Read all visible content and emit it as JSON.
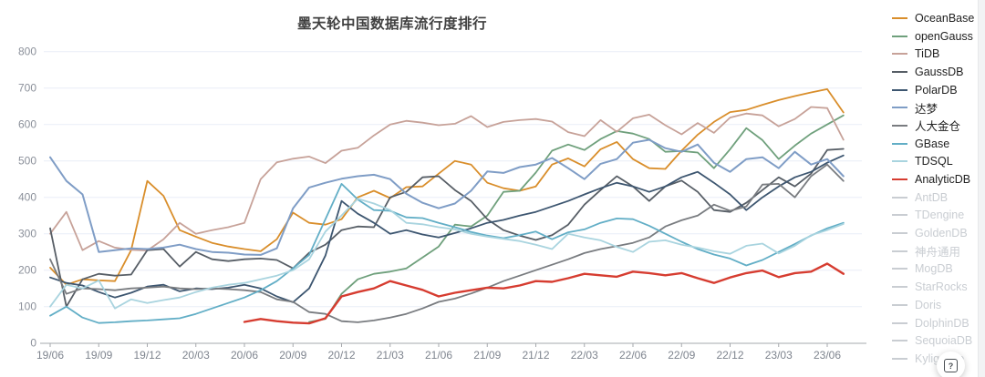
{
  "header": {
    "title": "墨天轮中国数据库流行度排行"
  },
  "help_button": {
    "glyph": "?"
  },
  "chart_data": {
    "type": "line",
    "title": "墨天轮中国数据库流行度排行",
    "xlabel": "",
    "ylabel": "",
    "ylim": [
      0,
      800
    ],
    "y_ticks": [
      0,
      100,
      200,
      300,
      400,
      500,
      600,
      700,
      800
    ],
    "grid": true,
    "legend_position": "right",
    "total_months": 50,
    "x_first_month": "19/06",
    "x_last_month": "23/07",
    "tick_every_months": 3,
    "x_tick_labels": [
      "19/06",
      "19/09",
      "19/12",
      "20/03",
      "20/06",
      "20/09",
      "20/12",
      "21/03",
      "21/06",
      "21/09",
      "21/12",
      "22/03",
      "22/06",
      "22/09",
      "22/12",
      "23/03",
      "23/06"
    ],
    "series": [
      {
        "name": "OceanBase",
        "color": "#D98E2B",
        "width": 1.8,
        "start": 0,
        "values": [
          207,
          160,
          175,
          172,
          170,
          255,
          445,
          404,
          310,
          292,
          275,
          265,
          258,
          252,
          285,
          358,
          330,
          325,
          340,
          400,
          418,
          398,
          428,
          430,
          465,
          500,
          490,
          440,
          425,
          418,
          430,
          490,
          507,
          485,
          532,
          552,
          505,
          480,
          478,
          528,
          572,
          607,
          634,
          640,
          654,
          667,
          678,
          688,
          697,
          633
        ]
      },
      {
        "name": "openGauss",
        "color": "#6FA07C",
        "width": 1.8,
        "start": 16,
        "values": [
          58,
          66,
          135,
          175,
          190,
          196,
          205,
          235,
          265,
          325,
          320,
          350,
          415,
          418,
          468,
          528,
          545,
          530,
          560,
          582,
          575,
          560,
          525,
          527,
          523,
          480,
          532,
          590,
          557,
          505,
          542,
          575,
          600,
          625
        ]
      },
      {
        "name": "TiDB",
        "color": "#C7A299",
        "width": 1.8,
        "start": 0,
        "values": [
          300,
          360,
          255,
          280,
          262,
          256,
          254,
          285,
          330,
          300,
          310,
          318,
          330,
          450,
          496,
          506,
          512,
          494,
          528,
          536,
          570,
          600,
          610,
          605,
          598,
          602,
          623,
          593,
          607,
          612,
          615,
          608,
          579,
          568,
          612,
          580,
          617,
          627,
          598,
          573,
          604,
          577,
          619,
          630,
          625,
          595,
          615,
          648,
          645,
          558
        ]
      },
      {
        "name": "GaussDB",
        "color": "#575E66",
        "width": 1.8,
        "start": 0,
        "values": [
          315,
          100,
          175,
          190,
          185,
          188,
          255,
          258,
          210,
          250,
          230,
          225,
          230,
          232,
          228,
          205,
          248,
          270,
          310,
          320,
          318,
          400,
          415,
          455,
          458,
          420,
          390,
          340,
          310,
          295,
          283,
          296,
          325,
          380,
          420,
          458,
          430,
          390,
          430,
          446,
          415,
          365,
          360,
          385,
          420,
          455,
          430,
          465,
          530,
          533
        ]
      },
      {
        "name": "PolarDB",
        "color": "#3D5670",
        "width": 1.8,
        "start": 0,
        "values": [
          180,
          165,
          158,
          140,
          125,
          138,
          155,
          160,
          142,
          150,
          148,
          152,
          160,
          150,
          128,
          112,
          150,
          240,
          390,
          355,
          330,
          300,
          310,
          298,
          290,
          302,
          315,
          330,
          338,
          350,
          360,
          375,
          390,
          408,
          425,
          440,
          430,
          415,
          430,
          455,
          470,
          440,
          408,
          365,
          400,
          430,
          455,
          470,
          495,
          515
        ]
      },
      {
        "name": "达梦",
        "color": "#7F9DC6",
        "width": 2.0,
        "start": 0,
        "values": [
          510,
          445,
          408,
          250,
          255,
          260,
          258,
          262,
          270,
          258,
          250,
          248,
          243,
          242,
          260,
          370,
          427,
          440,
          451,
          458,
          462,
          450,
          410,
          385,
          370,
          383,
          418,
          471,
          467,
          483,
          490,
          508,
          480,
          450,
          492,
          505,
          550,
          558,
          535,
          525,
          545,
          495,
          470,
          505,
          510,
          480,
          525,
          490,
          505,
          458
        ]
      },
      {
        "name": "人大金仓",
        "color": "#797C80",
        "width": 1.8,
        "start": 0,
        "values": [
          230,
          135,
          150,
          148,
          145,
          150,
          152,
          155,
          150,
          148,
          150,
          148,
          145,
          140,
          120,
          113,
          85,
          80,
          60,
          57,
          62,
          70,
          80,
          95,
          113,
          122,
          136,
          152,
          170,
          185,
          200,
          215,
          230,
          247,
          258,
          266,
          275,
          290,
          320,
          337,
          350,
          380,
          363,
          375,
          435,
          437,
          400,
          458,
          490,
          445
        ]
      },
      {
        "name": "GBase",
        "color": "#62AEC6",
        "width": 1.8,
        "start": 0,
        "values": [
          75,
          100,
          70,
          55,
          57,
          60,
          62,
          65,
          68,
          80,
          95,
          110,
          125,
          145,
          170,
          205,
          242,
          340,
          437,
          394,
          365,
          363,
          345,
          343,
          330,
          318,
          305,
          295,
          288,
          296,
          306,
          285,
          304,
          312,
          330,
          342,
          340,
          322,
          300,
          278,
          258,
          243,
          232,
          213,
          228,
          250,
          272,
          295,
          315,
          330
        ]
      },
      {
        "name": "TDSQL",
        "color": "#A9D4DF",
        "width": 1.8,
        "start": 0,
        "values": [
          100,
          160,
          150,
          172,
          95,
          120,
          110,
          118,
          125,
          140,
          152,
          160,
          165,
          175,
          185,
          200,
          230,
          306,
          350,
          396,
          383,
          365,
          330,
          326,
          318,
          312,
          300,
          292,
          286,
          280,
          270,
          258,
          300,
          290,
          282,
          264,
          250,
          278,
          282,
          270,
          262,
          252,
          245,
          267,
          273,
          246,
          267,
          296,
          310,
          327
        ]
      },
      {
        "name": "AnalyticDB",
        "color": "#D63C30",
        "width": 2.4,
        "start": 12,
        "values": [
          58,
          66,
          60,
          56,
          54,
          68,
          128,
          140,
          150,
          170,
          158,
          146,
          128,
          138,
          145,
          152,
          150,
          158,
          170,
          168,
          178,
          190,
          186,
          182,
          196,
          192,
          186,
          192,
          178,
          165,
          180,
          192,
          199,
          181,
          192,
          196,
          218,
          190
        ]
      }
    ],
    "inactive_series": [
      "AntDB",
      "TDengine",
      "GoldenDB",
      "神舟通用",
      "MogDB",
      "StarRocks",
      "Doris",
      "DolphinDB",
      "SequoiaDB",
      "Kyligence"
    ],
    "inactive_color": "#c9cdd2"
  }
}
